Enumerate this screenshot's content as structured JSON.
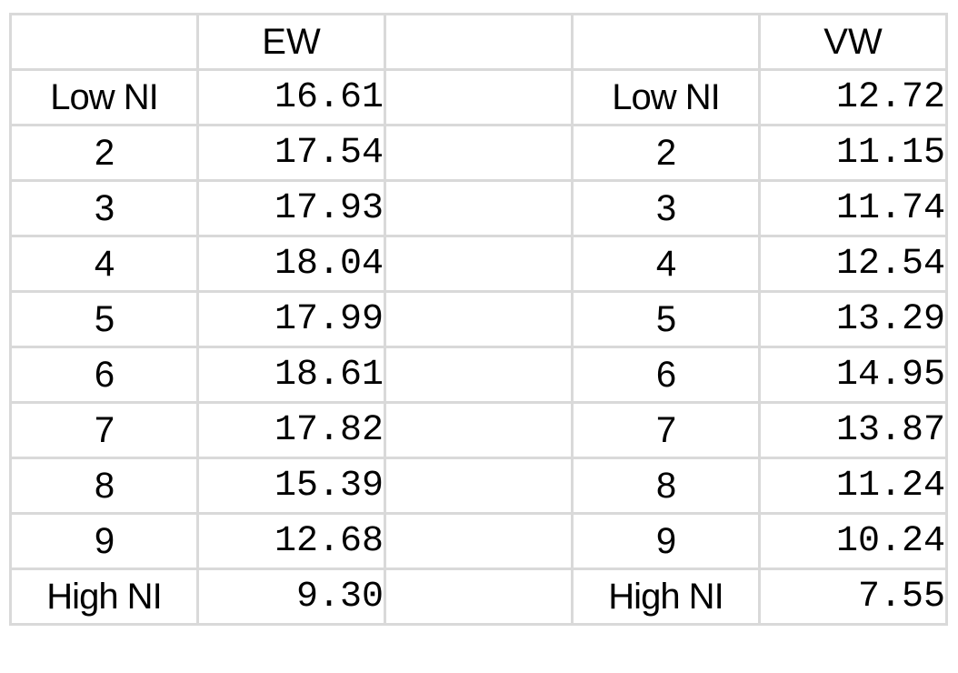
{
  "headers": [
    "",
    "EW",
    "",
    "",
    "VW"
  ],
  "rows": [
    {
      "label_ew": "Low NI",
      "ew": "16.61",
      "label_vw": "Low NI",
      "vw": "12.72"
    },
    {
      "label_ew": "2",
      "ew": "17.54",
      "label_vw": "2",
      "vw": "11.15"
    },
    {
      "label_ew": "3",
      "ew": "17.93",
      "label_vw": "3",
      "vw": "11.74"
    },
    {
      "label_ew": "4",
      "ew": "18.04",
      "label_vw": "4",
      "vw": "12.54"
    },
    {
      "label_ew": "5",
      "ew": "17.99",
      "label_vw": "5",
      "vw": "13.29"
    },
    {
      "label_ew": "6",
      "ew": "18.61",
      "label_vw": "6",
      "vw": "14.95"
    },
    {
      "label_ew": "7",
      "ew": "17.82",
      "label_vw": "7",
      "vw": "13.87"
    },
    {
      "label_ew": "8",
      "ew": "15.39",
      "label_vw": "8",
      "vw": "11.24"
    },
    {
      "label_ew": "9",
      "ew": "12.68",
      "label_vw": "9",
      "vw": "10.24"
    },
    {
      "label_ew": "High NI",
      "ew": "9.30",
      "label_vw": "High NI",
      "vw": "7.55"
    }
  ]
}
